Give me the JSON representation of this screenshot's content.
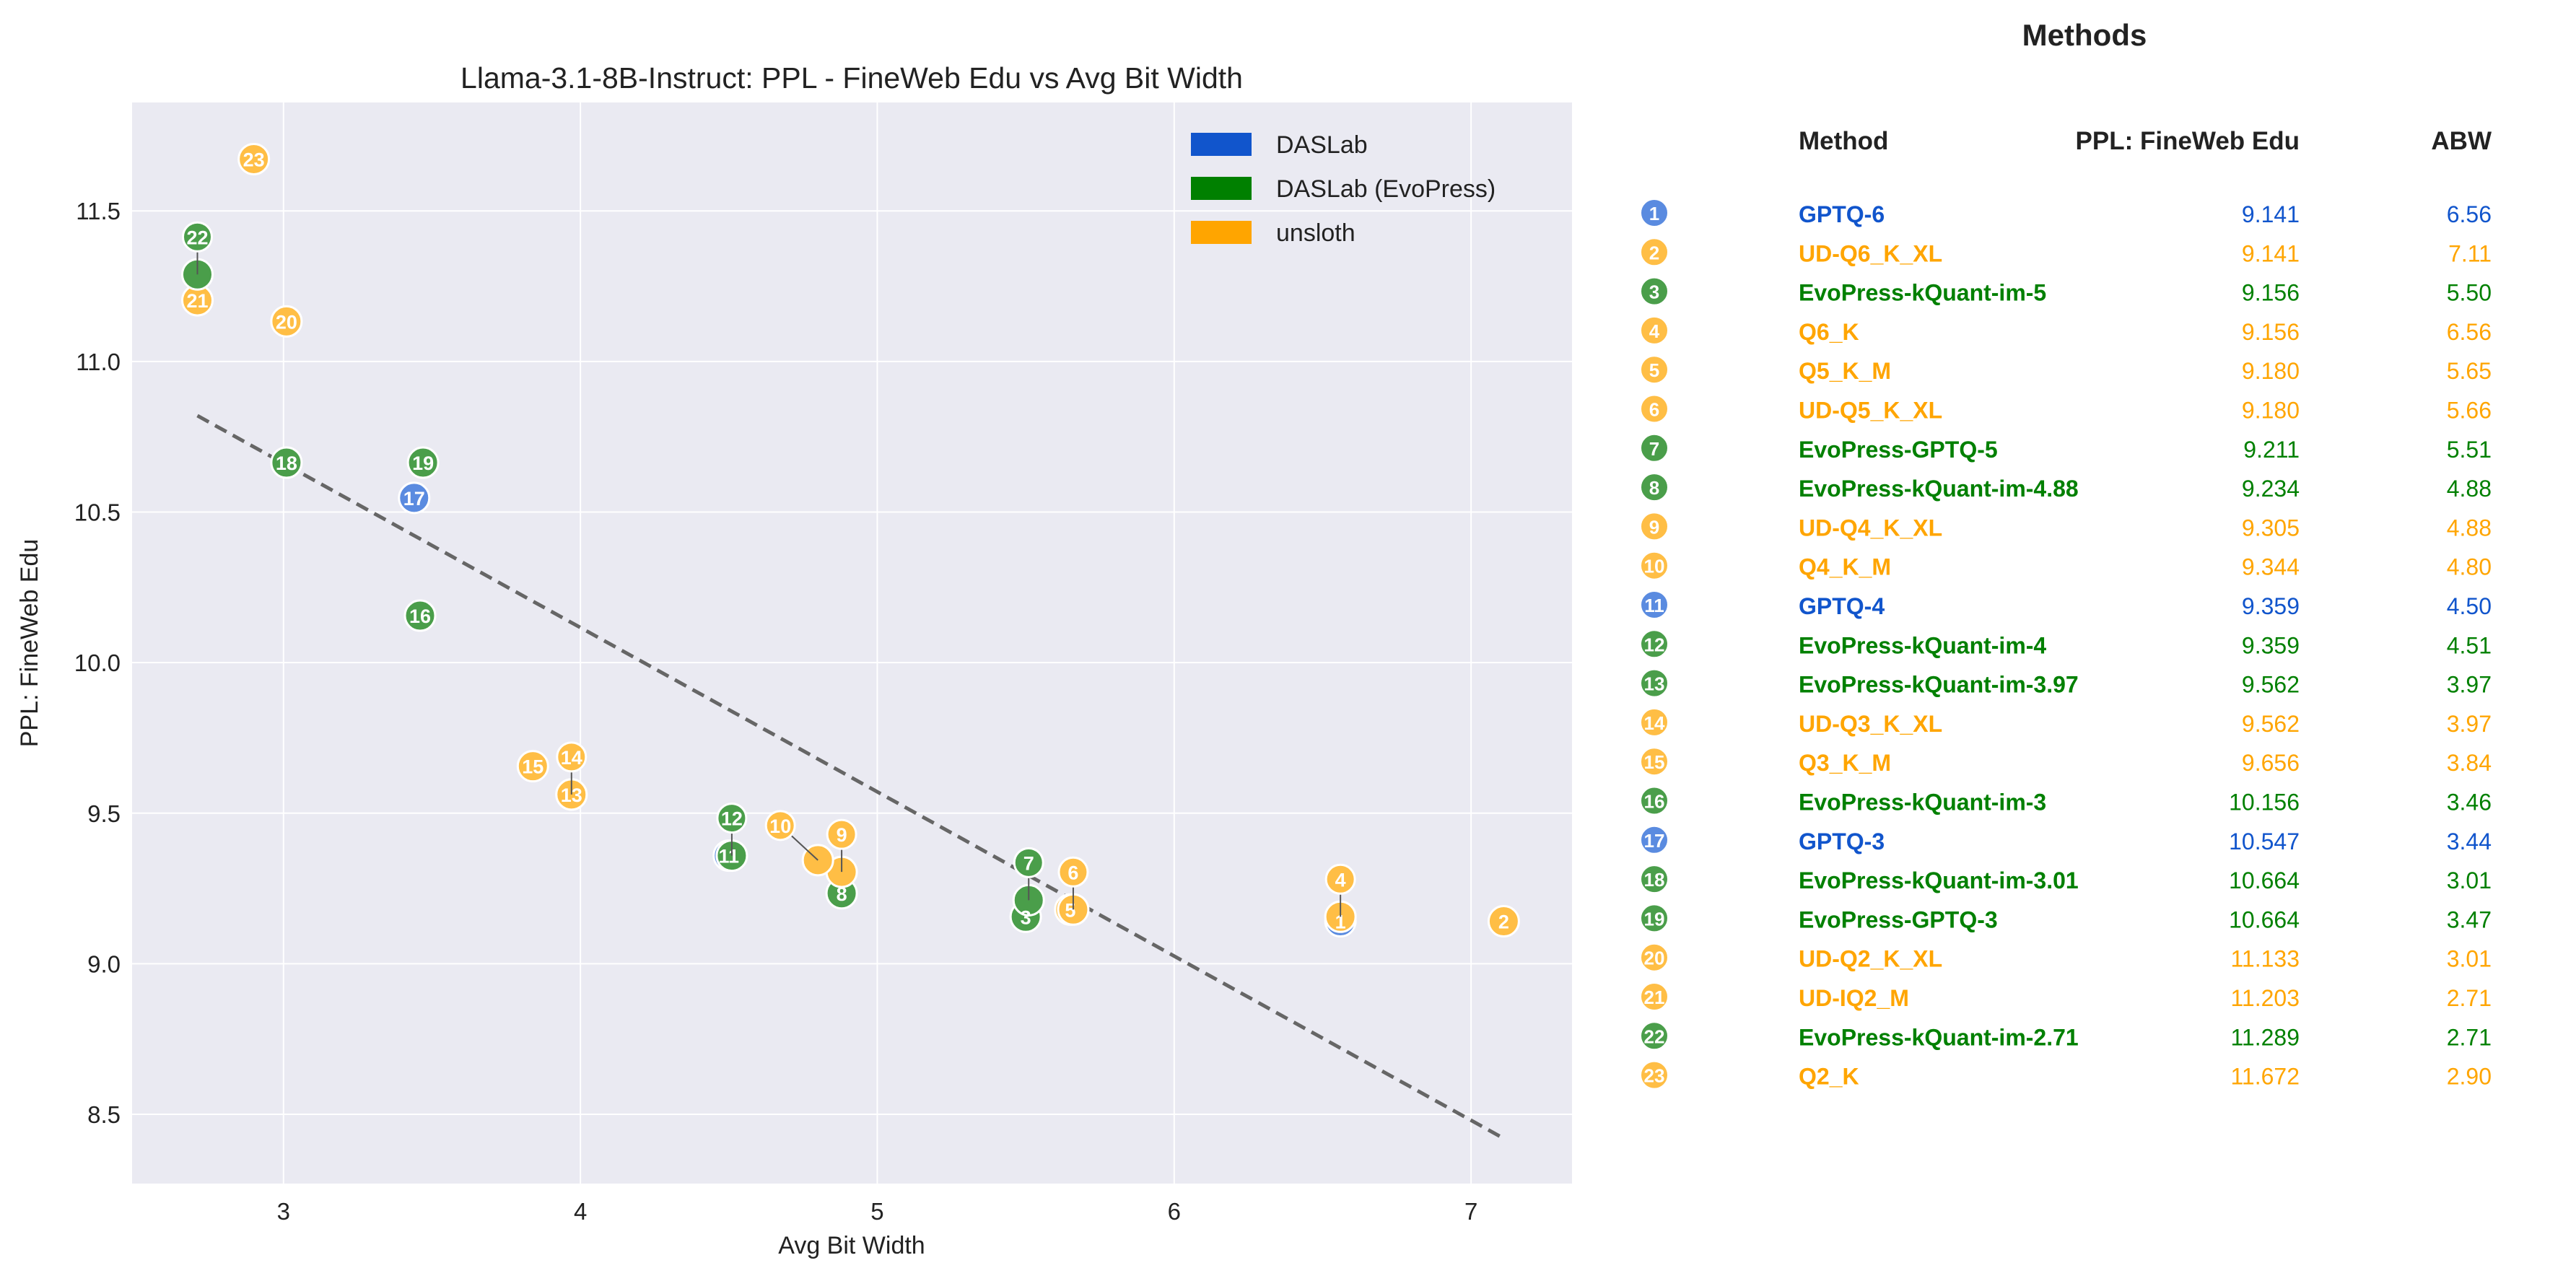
{
  "chart_data": {
    "type": "scatter",
    "title": "Llama-3.1-8B-Instruct: PPL - FineWeb Edu vs Avg Bit Width",
    "xlabel": "Avg Bit Width",
    "ylabel": "PPL: FineWeb Edu",
    "xlim": [
      2.49,
      7.34
    ],
    "ylim": [
      8.27,
      11.86
    ],
    "xticks": [
      "3",
      "4",
      "5",
      "6",
      "7"
    ],
    "xtick_values": [
      3,
      4,
      5,
      6,
      7
    ],
    "yticks": [
      "8.5",
      "9.0",
      "9.5",
      "10.0",
      "10.5",
      "11.0",
      "11.5"
    ],
    "ytick_values": [
      8.5,
      9.0,
      9.5,
      10.0,
      10.5,
      11.0,
      11.5
    ],
    "grid": true,
    "legend_placement": "top-right",
    "legend": [
      {
        "name": "DASLab",
        "color": "#1155cc"
      },
      {
        "name": "DASLab (EvoPress)",
        "color": "#008000"
      },
      {
        "name": "unsloth",
        "color": "#ffa500"
      }
    ],
    "trendline": {
      "style": "dashed",
      "x": [
        2.71,
        7.11
      ],
      "y": [
        10.82,
        8.42
      ]
    },
    "points": [
      {
        "id": "1",
        "method": "GPTQ-6",
        "ppl": "9.141",
        "abw": "6.56",
        "group": 0
      },
      {
        "id": "2",
        "method": "UD-Q6_K_XL",
        "ppl": "9.141",
        "abw": "7.11",
        "group": 2
      },
      {
        "id": "3",
        "method": "EvoPress-kQuant-im-5",
        "ppl": "9.156",
        "abw": "5.50",
        "group": 1
      },
      {
        "id": "4",
        "method": "Q6_K",
        "ppl": "9.156",
        "abw": "6.56",
        "group": 2
      },
      {
        "id": "5",
        "method": "Q5_K_M",
        "ppl": "9.180",
        "abw": "5.65",
        "group": 2
      },
      {
        "id": "6",
        "method": "UD-Q5_K_XL",
        "ppl": "9.180",
        "abw": "5.66",
        "group": 2
      },
      {
        "id": "7",
        "method": "EvoPress-GPTQ-5",
        "ppl": "9.211",
        "abw": "5.51",
        "group": 1
      },
      {
        "id": "8",
        "method": "EvoPress-kQuant-im-4.88",
        "ppl": "9.234",
        "abw": "4.88",
        "group": 1
      },
      {
        "id": "9",
        "method": "UD-Q4_K_XL",
        "ppl": "9.305",
        "abw": "4.88",
        "group": 2
      },
      {
        "id": "10",
        "method": "Q4_K_M",
        "ppl": "9.344",
        "abw": "4.80",
        "group": 2
      },
      {
        "id": "11",
        "method": "GPTQ-4",
        "ppl": "9.359",
        "abw": "4.50",
        "group": 0
      },
      {
        "id": "12",
        "method": "EvoPress-kQuant-im-4",
        "ppl": "9.359",
        "abw": "4.51",
        "group": 1
      },
      {
        "id": "13",
        "method": "EvoPress-kQuant-im-3.97",
        "ppl": "9.562",
        "abw": "3.97",
        "group": 1
      },
      {
        "id": "14",
        "method": "UD-Q3_K_XL",
        "ppl": "9.562",
        "abw": "3.97",
        "group": 2
      },
      {
        "id": "15",
        "method": "Q3_K_M",
        "ppl": "9.656",
        "abw": "3.84",
        "group": 2
      },
      {
        "id": "16",
        "method": "EvoPress-kQuant-im-3",
        "ppl": "10.156",
        "abw": "3.46",
        "group": 1
      },
      {
        "id": "17",
        "method": "GPTQ-3",
        "ppl": "10.547",
        "abw": "3.44",
        "group": 0
      },
      {
        "id": "18",
        "method": "EvoPress-kQuant-im-3.01",
        "ppl": "10.664",
        "abw": "3.01",
        "group": 1
      },
      {
        "id": "19",
        "method": "EvoPress-GPTQ-3",
        "ppl": "10.664",
        "abw": "3.47",
        "group": 1
      },
      {
        "id": "20",
        "method": "UD-Q2_K_XL",
        "ppl": "11.133",
        "abw": "3.01",
        "group": 2
      },
      {
        "id": "21",
        "method": "UD-IQ2_M",
        "ppl": "11.203",
        "abw": "2.71",
        "group": 2
      },
      {
        "id": "22",
        "method": "EvoPress-kQuant-im-2.71",
        "ppl": "11.289",
        "abw": "2.71",
        "group": 1
      },
      {
        "id": "23",
        "method": "Q2_K",
        "ppl": "11.672",
        "abw": "2.90",
        "group": 2
      }
    ]
  },
  "table": {
    "title": "Methods",
    "headers": {
      "method": "Method",
      "ppl": "PPL: FineWeb Edu",
      "abw": "ABW"
    }
  },
  "colors": {
    "background": "#eaeaf2",
    "marker": [
      "#5a8be0",
      "#4a9e4a",
      "#ffbe45"
    ]
  }
}
